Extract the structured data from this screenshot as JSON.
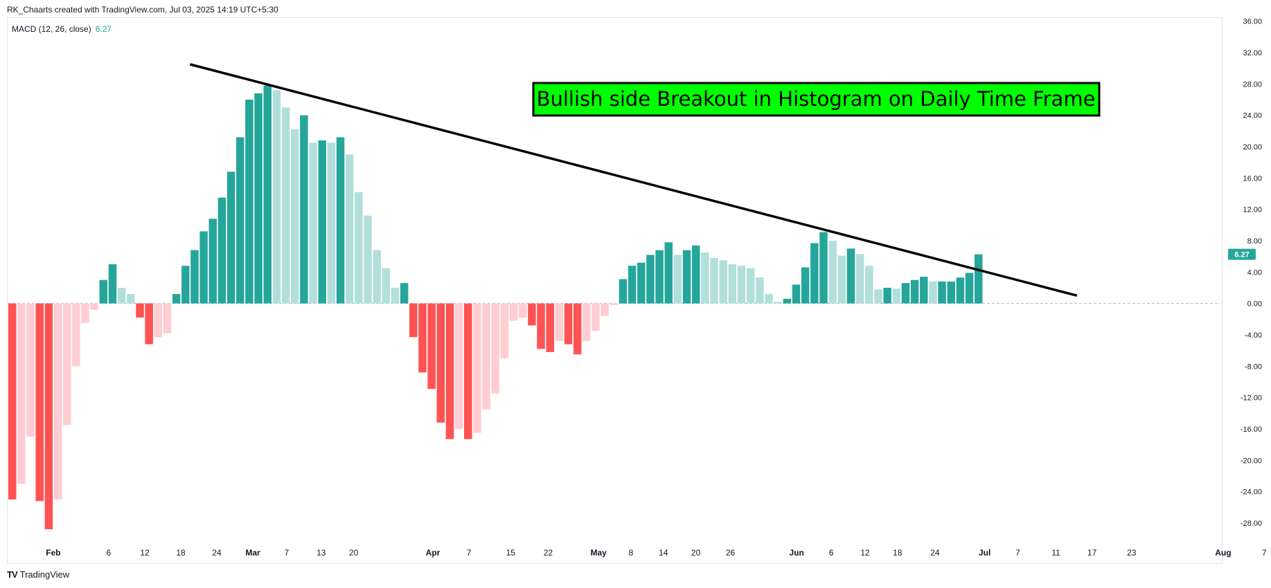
{
  "header": {
    "credit": "RK_Chaarts created with TradingView.com, Jul 03, 2025 14:19 UTC+5:30"
  },
  "legend": {
    "label": "MACD (12, 26, close)",
    "value": "6.27"
  },
  "footer": {
    "brand": "TradingView"
  },
  "colors": {
    "pos_strong": "#26a69a",
    "pos_weak": "#b2dfdb",
    "neg_strong": "#ff5252",
    "neg_weak": "#ffcdd2",
    "callout_bg": "#00ff00"
  },
  "annotation": {
    "text": "Bullish side Breakout in Histogram on Daily Time Frame"
  },
  "chart_data": {
    "type": "bar",
    "title": "",
    "xlabel": "",
    "ylabel": "",
    "ylim": [
      -31,
      36.5
    ],
    "y_ticks": [
      "36.00",
      "32.00",
      "28.00",
      "24.00",
      "20.00",
      "16.00",
      "12.00",
      "8.00",
      "4.00",
      "0.00",
      "-4.00",
      "-8.00",
      "-12.00",
      "-16.00",
      "-20.00",
      "-24.00",
      "-28.00"
    ],
    "x_ticks": [
      "Feb",
      "6",
      "12",
      "18",
      "24",
      "Mar",
      "7",
      "13",
      "20",
      "Apr",
      "7",
      "15",
      "22",
      "May",
      "8",
      "14",
      "20",
      "26",
      "Jun",
      "6",
      "12",
      "18",
      "24",
      "Jul",
      "7",
      "11",
      "17",
      "23",
      "Aug",
      "7"
    ],
    "last_value_label": "6.27",
    "values": [
      -25.0,
      -23.0,
      -17.0,
      -25.2,
      -28.8,
      -25.0,
      -15.5,
      -8.0,
      -2.5,
      -0.8,
      3.0,
      5.0,
      2.0,
      1.2,
      -1.8,
      -5.2,
      -4.3,
      -3.8,
      1.2,
      4.8,
      6.8,
      9.2,
      10.8,
      13.5,
      16.8,
      21.2,
      26.0,
      26.8,
      27.8,
      27.2,
      25.0,
      22.2,
      24.0,
      20.5,
      20.8,
      20.5,
      21.2,
      19.0,
      14.2,
      11.2,
      6.8,
      4.5,
      2.0,
      2.6,
      -4.3,
      -8.8,
      -10.9,
      -15.2,
      -17.3,
      -16.0,
      -17.3,
      -16.5,
      -13.5,
      -11.5,
      -7.0,
      -2.2,
      -1.8,
      -2.8,
      -5.8,
      -6.2,
      -4.8,
      -5.2,
      -6.5,
      -4.8,
      -3.5,
      -1.6,
      -0.2,
      3.1,
      4.8,
      5.2,
      6.2,
      6.8,
      7.8,
      6.2,
      6.8,
      7.4,
      6.5,
      5.8,
      5.5,
      5.0,
      4.8,
      4.5,
      3.3,
      1.2,
      0.2,
      0.6,
      2.4,
      4.6,
      7.7,
      9.1,
      8.0,
      6.1,
      7.0,
      6.3,
      4.8,
      1.8,
      2.0,
      1.9,
      2.6,
      3.0,
      3.4,
      2.8,
      2.8,
      2.8,
      3.3,
      3.9,
      6.27
    ],
    "trendline": {
      "from": {
        "index": 19.5,
        "value": 30.5
      },
      "to": {
        "index": 116.8,
        "value": 1.0
      }
    }
  }
}
